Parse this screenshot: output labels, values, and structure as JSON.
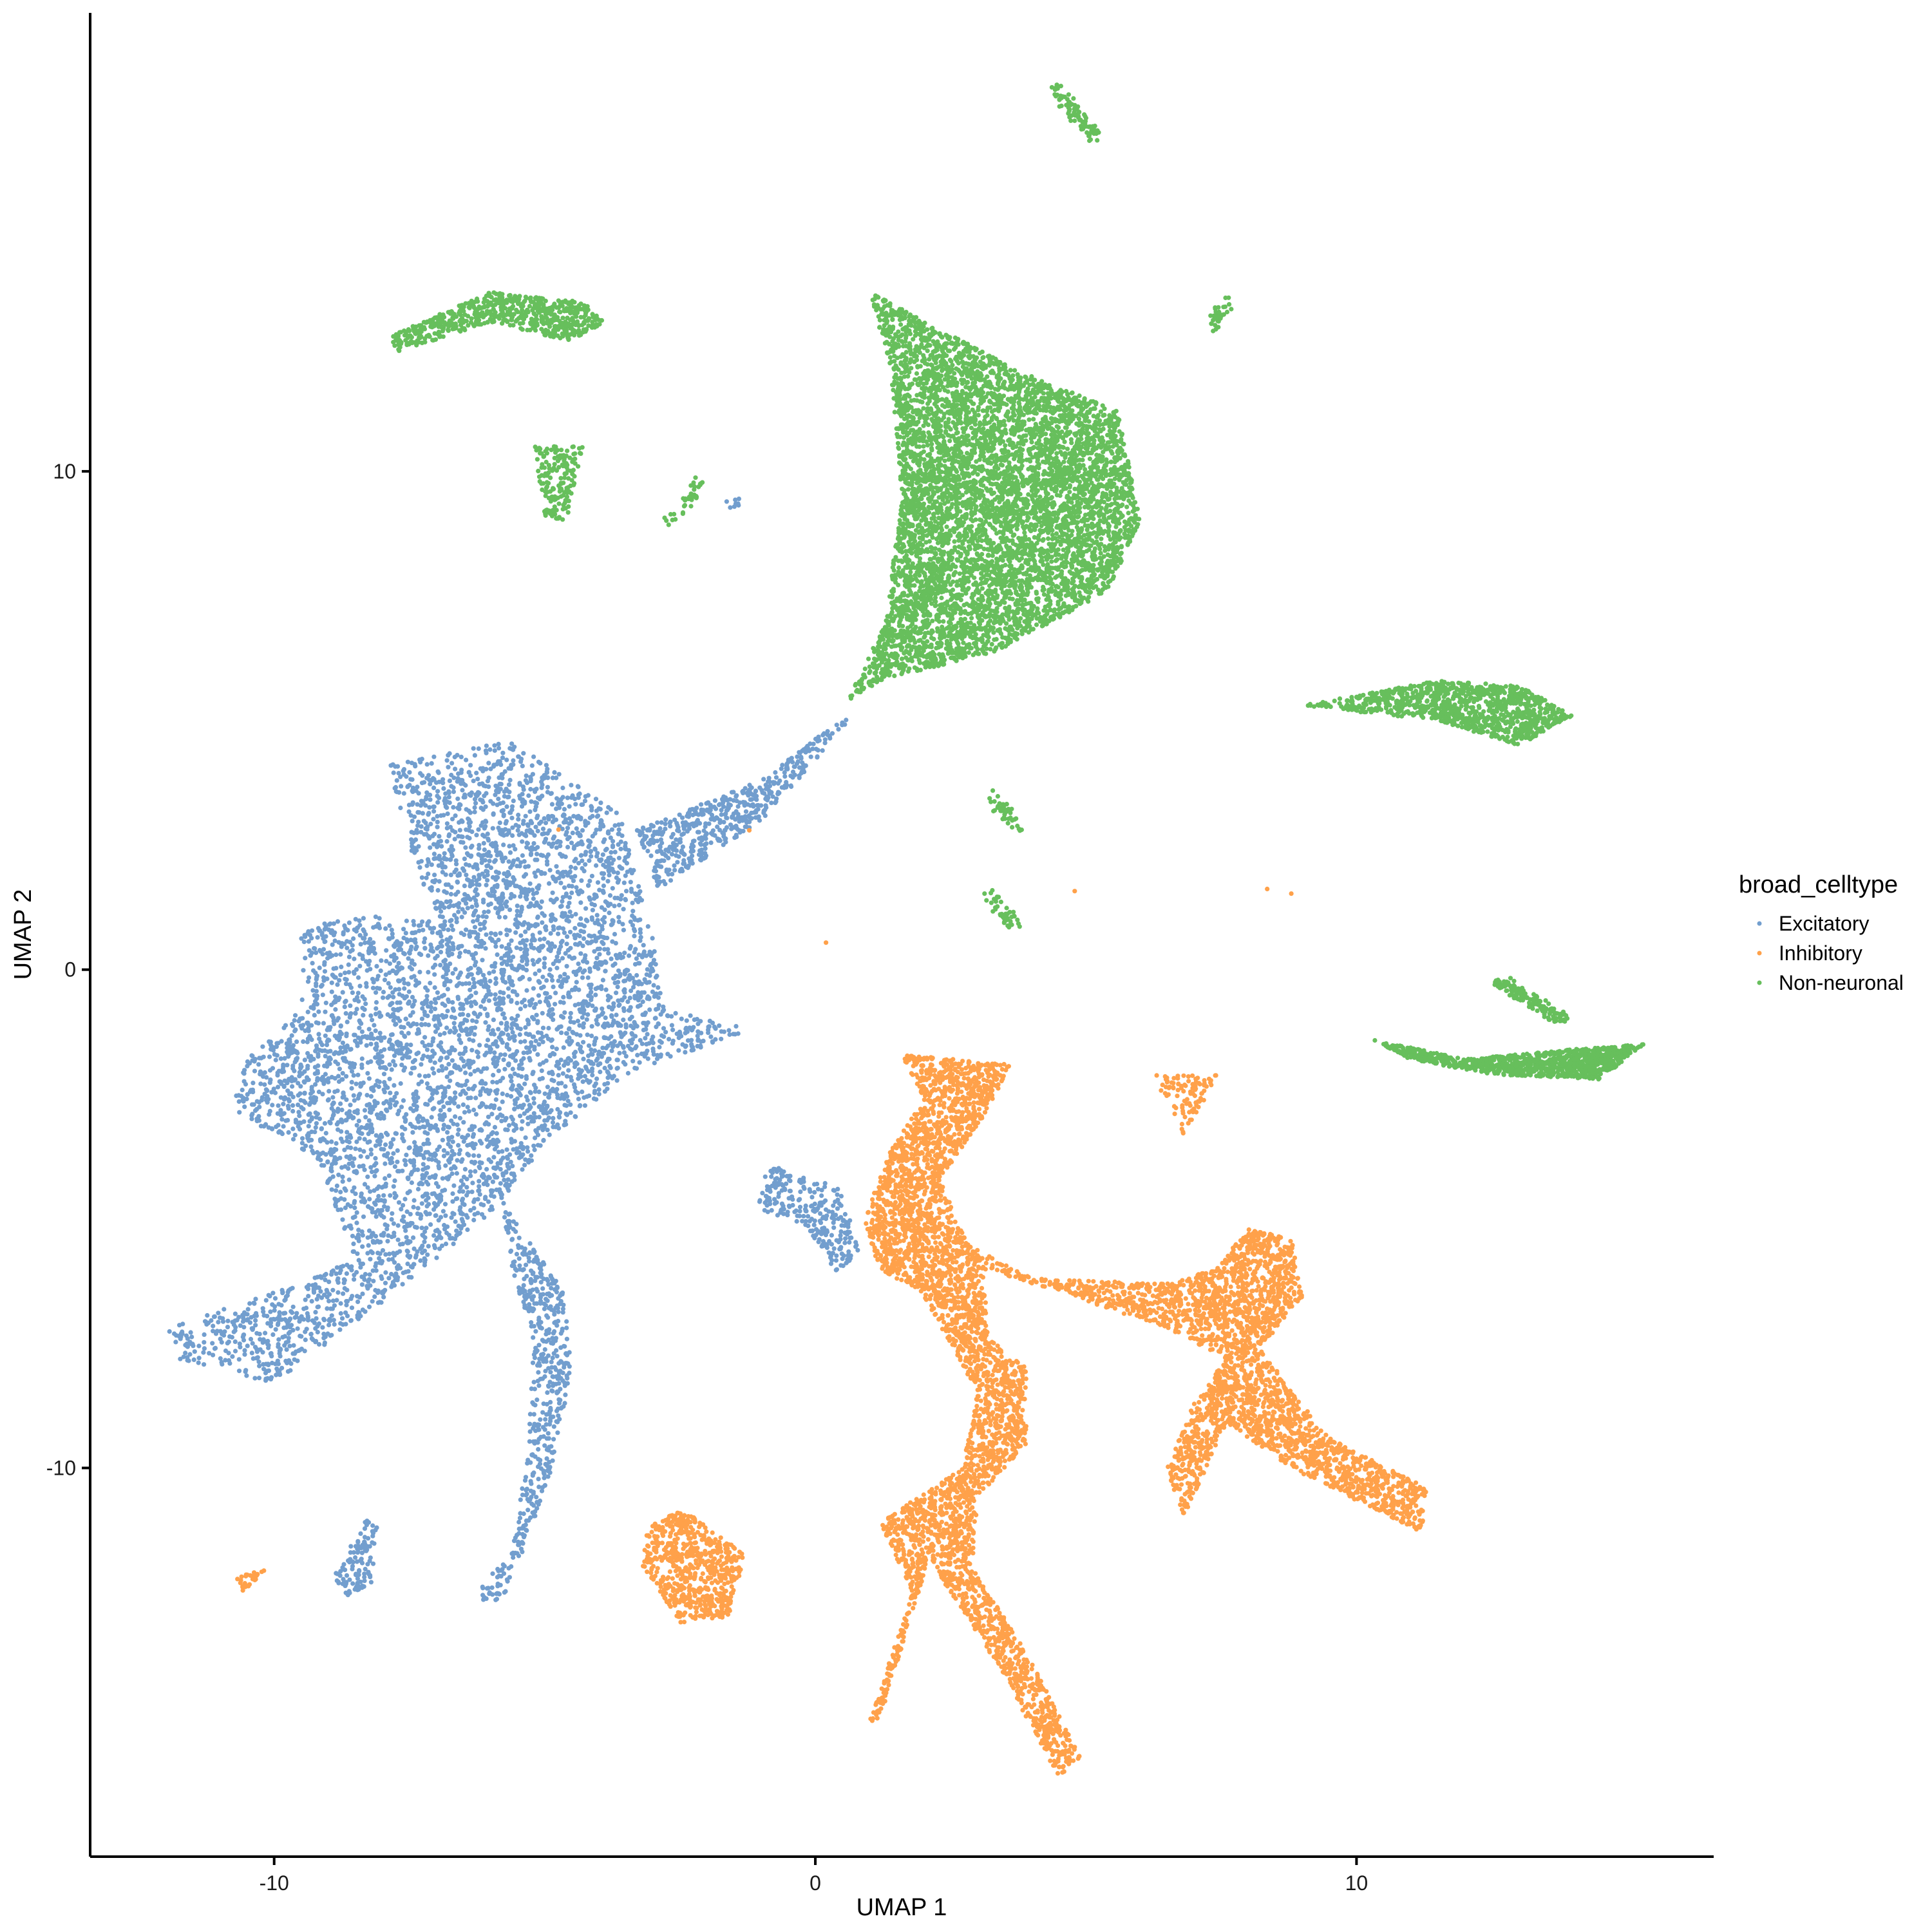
{
  "chart_data": {
    "type": "scatter",
    "title": "",
    "xlabel": "UMAP 1",
    "ylabel": "UMAP 2",
    "xlim": [
      -13.4,
      16.6
    ],
    "ylim": [
      -17.8,
      19.2
    ],
    "xticks": [
      -10,
      0,
      10
    ],
    "yticks": [
      -10,
      0,
      10
    ],
    "grid": false,
    "legend_title": "broad_celltype",
    "legend_position": "right",
    "series": [
      {
        "name": "Excitatory",
        "color": "#729ECE",
        "clusters": [
          {
            "points": [
              [
                -7.9,
                4.1
              ],
              [
                -5.6,
                4.6
              ],
              [
                -3.6,
                3.1
              ],
              [
                -3.0,
                0.6
              ],
              [
                -2.8,
                -0.8
              ],
              [
                -1.2,
                -1.2
              ],
              [
                -3.5,
                -2.1
              ],
              [
                -5.0,
                -3.5
              ],
              [
                -6.0,
                -4.9
              ],
              [
                -7.8,
                -6.5
              ],
              [
                -10.0,
                -8.3
              ],
              [
                -11.8,
                -7.8
              ],
              [
                -12.0,
                -7.2
              ],
              [
                -9.5,
                -6.3
              ],
              [
                -8.5,
                -5.8
              ],
              [
                -9.2,
                -3.8
              ],
              [
                -10.8,
                -2.8
              ],
              [
                -10.5,
                -1.8
              ],
              [
                -9.5,
                -0.8
              ],
              [
                -9.5,
                0.8
              ],
              [
                -8.5,
                1.1
              ],
              [
                -7.0,
                1.0
              ],
              [
                -7.5,
                2.5
              ]
            ],
            "n": 5200
          },
          {
            "points": [
              [
                -3.3,
                2.8
              ],
              [
                -1.0,
                3.8
              ],
              [
                0.7,
                5.2
              ],
              [
                0.5,
                4.8
              ],
              [
                -1.0,
                3.0
              ],
              [
                -2.9,
                1.6
              ]
            ],
            "n": 520
          },
          {
            "points": [
              [
                -5.8,
                -4.6
              ],
              [
                -4.6,
                -6.5
              ],
              [
                -4.5,
                -8.1
              ],
              [
                -5.0,
                -10.6
              ],
              [
                -5.8,
                -12.7
              ],
              [
                -6.4,
                -12.6
              ],
              [
                -5.6,
                -11.7
              ],
              [
                -5.3,
                -9.5
              ],
              [
                -5.2,
                -7.5
              ],
              [
                -5.6,
                -6.0
              ]
            ],
            "n": 520
          },
          {
            "points": [
              [
                -8.3,
                -11.0
              ],
              [
                -8.1,
                -11.2
              ],
              [
                -8.2,
                -12.3
              ],
              [
                -8.7,
                -12.6
              ],
              [
                -8.9,
                -12.2
              ]
            ],
            "n": 110
          },
          {
            "points": [
              [
                -0.9,
                -3.9
              ],
              [
                0.5,
                -4.4
              ],
              [
                0.8,
                -5.7
              ],
              [
                0.4,
                -6.1
              ],
              [
                -0.2,
                -5.1
              ],
              [
                -1.1,
                -4.8
              ]
            ],
            "n": 260
          },
          {
            "points": [
              [
                -1.3,
                9.4
              ],
              [
                -1.6,
                9.3
              ]
            ],
            "n": 8
          }
        ]
      },
      {
        "name": "Inhibitory",
        "color": "#FFA14A",
        "clusters": [
          {
            "points": [
              [
                1.6,
                -1.7
              ],
              [
                3.6,
                -1.9
              ],
              [
                3.2,
                -2.8
              ],
              [
                2.3,
                -4.2
              ],
              [
                2.8,
                -5.5
              ],
              [
                4.0,
                -6.2
              ],
              [
                6.5,
                -6.3
              ],
              [
                7.4,
                -6.0
              ],
              [
                8.0,
                -5.2
              ],
              [
                8.8,
                -5.4
              ],
              [
                9.0,
                -6.6
              ],
              [
                8.2,
                -7.6
              ],
              [
                9.5,
                -9.4
              ],
              [
                11.3,
                -10.4
              ],
              [
                11.2,
                -11.3
              ],
              [
                8.8,
                -10.0
              ],
              [
                7.6,
                -9.1
              ],
              [
                6.8,
                -11.0
              ],
              [
                6.5,
                -10.0
              ],
              [
                7.0,
                -8.7
              ],
              [
                7.6,
                -7.8
              ],
              [
                6.5,
                -7.2
              ],
              [
                4.6,
                -6.5
              ],
              [
                3.1,
                -6.0
              ],
              [
                3.2,
                -7.4
              ],
              [
                3.9,
                -8.0
              ],
              [
                3.9,
                -9.5
              ],
              [
                3.0,
                -10.6
              ],
              [
                2.9,
                -12.0
              ],
              [
                3.8,
                -13.5
              ],
              [
                4.9,
                -15.8
              ],
              [
                4.5,
                -16.2
              ],
              [
                3.4,
                -14.0
              ],
              [
                2.5,
                -12.5
              ],
              [
                2.1,
                -11.8
              ],
              [
                1.2,
                -15.0
              ],
              [
                1.0,
                -15.1
              ],
              [
                1.8,
                -12.5
              ],
              [
                1.2,
                -11.1
              ],
              [
                2.7,
                -10.0
              ],
              [
                3.0,
                -8.5
              ],
              [
                2.5,
                -7.5
              ],
              [
                1.9,
                -6.4
              ],
              [
                1.2,
                -6.1
              ],
              [
                0.9,
                -5.0
              ],
              [
                1.4,
                -3.6
              ],
              [
                2.0,
                -2.6
              ]
            ],
            "n": 6500
          },
          {
            "points": [
              [
                -3.1,
                -11.2
              ],
              [
                -2.5,
                -10.8
              ],
              [
                -1.3,
                -11.7
              ],
              [
                -1.6,
                -13.0
              ],
              [
                -2.5,
                -13.1
              ],
              [
                -3.2,
                -12.0
              ]
            ],
            "n": 620
          },
          {
            "points": [
              [
                6.2,
                -2.1
              ],
              [
                7.5,
                -2.1
              ],
              [
                6.8,
                -3.3
              ]
            ],
            "n": 95
          },
          {
            "points": [
              [
                -10.7,
                -12.2
              ],
              [
                -10.1,
                -12.0
              ],
              [
                -10.6,
                -12.5
              ]
            ],
            "n": 28
          },
          {
            "points": [
              [
                -5.1,
                3.8
              ],
              [
                -5.1,
                0.6
              ],
              [
                -4.9,
                0.6
              ],
              [
                -3.7,
                0.3
              ],
              [
                8.4,
                1.0
              ],
              [
                9.3,
                1.9
              ]
            ],
            "n": 6
          }
        ]
      },
      {
        "name": "Non-neuronal",
        "color": "#67BF5C",
        "clusters": [
          {
            "points": [
              [
                1.0,
                13.6
              ],
              [
                3.8,
                12.0
              ],
              [
                5.6,
                11.2
              ],
              [
                6.0,
                9.0
              ],
              [
                5.4,
                7.6
              ],
              [
                3.4,
                6.4
              ],
              [
                1.2,
                5.8
              ],
              [
                0.6,
                5.4
              ],
              [
                1.3,
                7.0
              ],
              [
                1.6,
                9.5
              ],
              [
                1.4,
                12.0
              ]
            ],
            "n": 6100
          },
          {
            "points": [
              [
                -7.9,
                12.7
              ],
              [
                -6.0,
                13.6
              ],
              [
                -4.3,
                13.4
              ],
              [
                -3.9,
                13.0
              ],
              [
                -4.5,
                12.6
              ],
              [
                -6.0,
                13.0
              ],
              [
                -7.7,
                12.4
              ]
            ],
            "n": 650
          },
          {
            "points": [
              [
                -5.2,
                10.5
              ],
              [
                -4.3,
                10.5
              ],
              [
                -4.6,
                9.0
              ],
              [
                -5.0,
                9.1
              ]
            ],
            "n": 170
          },
          {
            "points": [
              [
                9.0,
                5.3
              ],
              [
                11.5,
                5.8
              ],
              [
                13.0,
                5.7
              ],
              [
                14.0,
                5.1
              ],
              [
                13.0,
                4.5
              ],
              [
                11.5,
                5.0
              ]
            ],
            "n": 1000
          },
          {
            "points": [
              [
                10.3,
                -1.4
              ],
              [
                12.0,
                -1.8
              ],
              [
                14.0,
                -1.6
              ],
              [
                15.3,
                -1.5
              ],
              [
                14.5,
                -2.2
              ],
              [
                12.5,
                -2.1
              ],
              [
                11.0,
                -1.8
              ]
            ],
            "n": 1000
          },
          {
            "points": [
              [
                12.6,
                -0.2
              ],
              [
                13.8,
                -1.0
              ]
            ],
            "n": 150
          },
          {
            "points": [
              [
                4.4,
                17.7
              ],
              [
                5.2,
                16.7
              ]
            ],
            "n": 85
          },
          {
            "points": [
              [
                7.6,
                13.4
              ],
              [
                7.3,
                12.9
              ]
            ],
            "n": 35
          },
          {
            "points": [
              [
                3.3,
                3.5
              ],
              [
                3.7,
                2.8
              ]
            ],
            "n": 45
          },
          {
            "points": [
              [
                3.2,
                1.5
              ],
              [
                3.7,
                0.9
              ]
            ],
            "n": 45
          },
          {
            "points": [
              [
                -2.7,
                9.0
              ],
              [
                -2.1,
                9.8
              ]
            ],
            "n": 40
          }
        ]
      }
    ]
  }
}
